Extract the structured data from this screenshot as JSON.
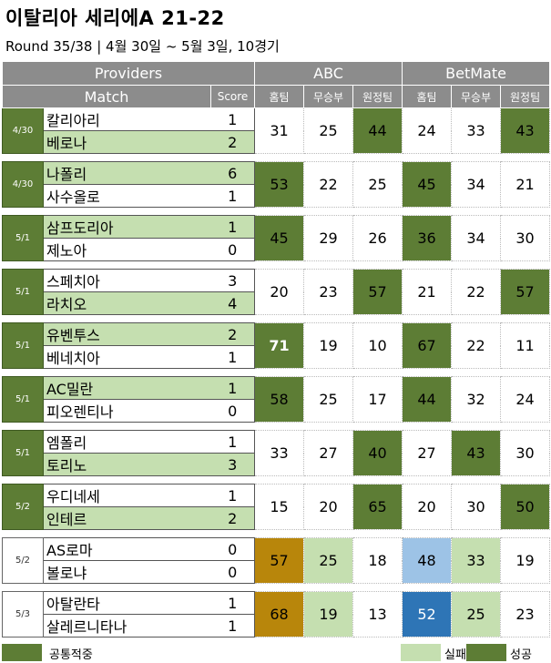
{
  "title": "이탈리아 세리에A 21-22",
  "subtitle": "Round 35/38 | 4월 30일 ~ 5월 3일, 10경기",
  "header": {
    "providers_label": "Providers",
    "match_label": "Match",
    "score_label": "Score",
    "provider_1": "ABC",
    "provider_2": "BetMate",
    "home_label": "홈팀",
    "draw_label": "무승부",
    "away_label": "원정팀"
  },
  "matches": [
    {
      "date": "4/30",
      "home": "칼리아리",
      "home_score": "1",
      "away": "베로나",
      "away_score": "2",
      "abc": [
        "31",
        "25",
        "44"
      ],
      "bm": [
        "24",
        "33",
        "43"
      ]
    },
    {
      "date": "4/30",
      "home": "나폴리",
      "home_score": "6",
      "away": "사수올로",
      "away_score": "1",
      "abc": [
        "53",
        "22",
        "25"
      ],
      "bm": [
        "45",
        "34",
        "21"
      ]
    },
    {
      "date": "5/1",
      "home": "삼프도리아",
      "home_score": "1",
      "away": "제노아",
      "away_score": "0",
      "abc": [
        "45",
        "29",
        "26"
      ],
      "bm": [
        "36",
        "34",
        "30"
      ]
    },
    {
      "date": "5/1",
      "home": "스페치아",
      "home_score": "3",
      "away": "라치오",
      "away_score": "4",
      "abc": [
        "20",
        "23",
        "57"
      ],
      "bm": [
        "21",
        "22",
        "57"
      ]
    },
    {
      "date": "5/1",
      "home": "유벤투스",
      "home_score": "2",
      "away": "베네치아",
      "away_score": "1",
      "abc": [
        "71",
        "19",
        "10"
      ],
      "bm": [
        "67",
        "22",
        "11"
      ]
    },
    {
      "date": "5/1",
      "home": "AC밀란",
      "home_score": "1",
      "away": "피오렌티나",
      "away_score": "0",
      "abc": [
        "58",
        "25",
        "17"
      ],
      "bm": [
        "44",
        "32",
        "24"
      ]
    },
    {
      "date": "5/1",
      "home": "엠폴리",
      "home_score": "1",
      "away": "토리노",
      "away_score": "3",
      "abc": [
        "33",
        "27",
        "40"
      ],
      "bm": [
        "27",
        "43",
        "30"
      ]
    },
    {
      "date": "5/2",
      "home": "우디네세",
      "home_score": "1",
      "away": "인테르",
      "away_score": "2",
      "abc": [
        "15",
        "20",
        "65"
      ],
      "bm": [
        "20",
        "30",
        "50"
      ]
    },
    {
      "date": "5/2",
      "home": "AS로마",
      "home_score": "0",
      "away": "볼로냐",
      "away_score": "0",
      "abc": [
        "57",
        "25",
        "18"
      ],
      "bm": [
        "48",
        "33",
        "19"
      ]
    },
    {
      "date": "5/3",
      "home": "아탈란타",
      "home_score": "1",
      "away": "살레르니타나",
      "away_score": "1",
      "abc": [
        "68",
        "19",
        "13"
      ],
      "bm": [
        "52",
        "25",
        "23"
      ]
    }
  ],
  "legend": {
    "common_label": "공통적중",
    "fail_label": "실패",
    "success_label": "성공"
  },
  "colors": {
    "success": "#5d7d35",
    "fail": "#c5dfb0",
    "common": "#b8860b",
    "header": "#8c8c8c",
    "blue_light": "#9dc3e6",
    "blue_dark": "#2e75b6"
  }
}
